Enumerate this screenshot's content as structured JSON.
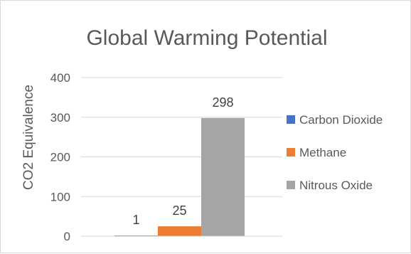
{
  "chart_data": {
    "type": "bar",
    "title": "Global Warming Potential",
    "ylabel": "CO2 Equivalence",
    "xlabel": "",
    "ylim": [
      0,
      400
    ],
    "yticks": [
      0,
      100,
      200,
      300,
      400
    ],
    "grid": true,
    "legend_position": "right",
    "series": [
      {
        "name": "Carbon Dioxide",
        "values": [
          1
        ],
        "color": "#4472C4"
      },
      {
        "name": "Methane",
        "values": [
          25
        ],
        "color": "#ED7D31"
      },
      {
        "name": "Nitrous Oxide",
        "values": [
          298
        ],
        "color": "#A5A5A5"
      }
    ]
  }
}
